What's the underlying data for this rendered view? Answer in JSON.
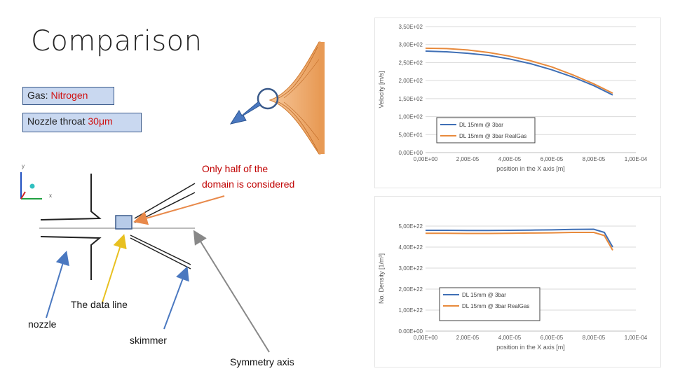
{
  "slide": {
    "title": "Comparison",
    "gas_label": "Gas: ",
    "gas_value": "Nitrogen",
    "nozzle_label": "Nozzle throat ",
    "nozzle_value": "30μm",
    "half_domain_note_line1": "Only half of the",
    "half_domain_note_line2": "domain is considered",
    "label_data_line": "The data line",
    "label_nozzle": "nozzle",
    "label_skimmer": "skimmer",
    "label_symmetry": "Symmetry axis",
    "axes_labels": {
      "x": "x",
      "y": "y"
    }
  },
  "colors": {
    "blue_series": "#3f6fb5",
    "orange_series": "#e88a3c",
    "arrow_blue": "#4a78c0",
    "arrow_orange": "#e8894a",
    "arrow_yellow": "#e8c020",
    "arrow_gray": "#888888"
  },
  "chart_data": [
    {
      "type": "line",
      "xlabel": "position in the X axis [m]",
      "ylabel": "Velocity [m/s]",
      "xlim": [
        0,
        0.0001
      ],
      "ylim": [
        0,
        350
      ],
      "x_ticks": [
        "0,00E+00",
        "2,00E-05",
        "4,00E-05",
        "6,00E-05",
        "8,00E-05",
        "1,00E-04"
      ],
      "y_ticks": [
        "0,00E+00",
        "5,00E+01",
        "1,00E+02",
        "1,50E+02",
        "2,00E+02",
        "2,50E+02",
        "3,00E+02",
        "3,50E+02"
      ],
      "x": [
        0,
        1e-05,
        2e-05,
        3e-05,
        4e-05,
        5e-05,
        6e-05,
        7e-05,
        8e-05,
        8.9e-05
      ],
      "series": [
        {
          "name": "DL 15mm @ 3bar",
          "color": "#3f6fb5",
          "values": [
            282,
            280,
            276,
            270,
            260,
            247,
            230,
            210,
            186,
            160
          ]
        },
        {
          "name": "DL 15mm @ 3bar RealGas",
          "color": "#e88a3c",
          "values": [
            290,
            289,
            285,
            278,
            268,
            255,
            238,
            216,
            191,
            165
          ]
        }
      ],
      "legend": "bottom-right"
    },
    {
      "type": "line",
      "xlabel": "position in the X axis [m]",
      "ylabel": "No. Density [1/m³]",
      "xlim": [
        0,
        0.0001
      ],
      "ylim": [
        0,
        5e+22
      ],
      "x_ticks": [
        "0,00E+00",
        "2,00E-05",
        "4,00E-05",
        "6,00E-05",
        "8,00E-05",
        "1,00E-04"
      ],
      "y_ticks": [
        "0.00E+00",
        "1,00E+22",
        "2,00E+22",
        "3,00E+22",
        "4,00E+22",
        "5,00E+22"
      ],
      "x": [
        0,
        1e-05,
        2e-05,
        3e-05,
        4e-05,
        5e-05,
        6e-05,
        7e-05,
        8e-05,
        8.5e-05,
        8.9e-05
      ],
      "series": [
        {
          "name": "DL 15mm @ 3bar",
          "color": "#3f6fb5",
          "values": [
            4.8e+22,
            4.8e+22,
            4.79e+22,
            4.79e+22,
            4.8e+22,
            4.81e+22,
            4.82e+22,
            4.84e+22,
            4.85e+22,
            4.7e+22,
            4e+22
          ]
        },
        {
          "name": "DL 15mm @ 3bar RealGas",
          "color": "#e88a3c",
          "values": [
            4.66e+22,
            4.66e+22,
            4.65e+22,
            4.65e+22,
            4.66e+22,
            4.67e+22,
            4.68e+22,
            4.7e+22,
            4.7e+22,
            4.55e+22,
            3.85e+22
          ]
        }
      ],
      "legend": "bottom-left"
    }
  ]
}
